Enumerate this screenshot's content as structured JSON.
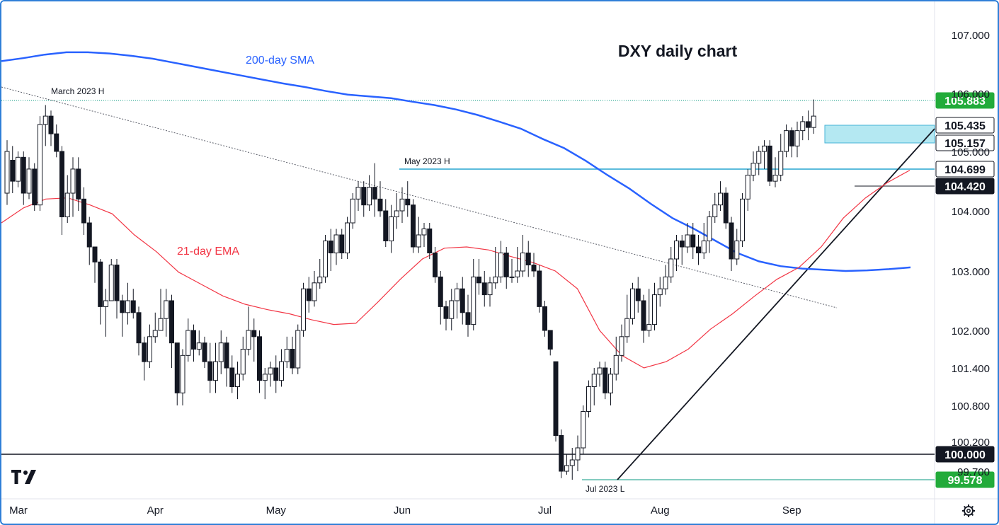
{
  "chart_data": {
    "type": "candlestick",
    "title": "DXY daily chart",
    "y_ticks": [
      99.7,
      100.2,
      100.8,
      101.4,
      102.0,
      103.0,
      104.0,
      105.0,
      106.0,
      107.0
    ],
    "y_tick_labels": [
      "99.700",
      "100.200",
      "100.800",
      "101.400",
      "102.000",
      "103.000",
      "104.000",
      "105.000",
      "106.000",
      "107.000"
    ],
    "x_tick_labels": [
      "Mar",
      "Apr",
      "May",
      "Jun",
      "Jul",
      "Aug",
      "Sep"
    ],
    "series": [
      {
        "name": "200-day SMA",
        "color": "#2962ff",
        "values": [
          106.55,
          106.6,
          106.66,
          106.7,
          106.7,
          106.68,
          106.64,
          106.59,
          106.52,
          106.45,
          106.38,
          106.31,
          106.24,
          106.17,
          106.11,
          106.04,
          105.98,
          105.95,
          105.92,
          105.86,
          105.8,
          105.72,
          105.62,
          105.5,
          105.38,
          105.22,
          105.06,
          104.84,
          104.6,
          104.38,
          104.12,
          103.88,
          103.7,
          103.5,
          103.3,
          103.16,
          103.08,
          103.04,
          103.02,
          103.0,
          103.01,
          103.03,
          103.06
        ]
      },
      {
        "name": "21-day EMA",
        "color": "#f23645",
        "values": [
          103.8,
          104.05,
          104.2,
          104.22,
          104.1,
          103.95,
          103.6,
          103.32,
          102.98,
          102.78,
          102.58,
          102.44,
          102.35,
          102.28,
          102.18,
          102.1,
          102.12,
          102.48,
          102.86,
          103.2,
          103.38,
          103.4,
          103.35,
          103.24,
          103.14,
          103.0,
          102.7,
          102.0,
          101.6,
          101.4,
          101.5,
          101.7,
          102.02,
          102.28,
          102.58,
          102.86,
          103.06,
          103.4,
          103.88,
          104.22,
          104.48,
          104.68
        ]
      }
    ],
    "candles": [
      [
        104.3,
        105.0,
        105.2,
        104.1
      ],
      [
        104.85,
        104.5,
        105.1,
        104.3
      ],
      [
        104.5,
        104.9,
        105.0,
        104.4
      ],
      [
        104.9,
        104.3,
        105.0,
        104.1
      ],
      [
        104.3,
        104.7,
        104.9,
        104.2
      ],
      [
        104.7,
        104.1,
        104.8,
        104.0
      ],
      [
        104.1,
        105.45,
        105.6,
        104.0
      ],
      [
        105.45,
        105.6,
        105.8,
        105.1
      ],
      [
        105.6,
        105.3,
        105.7,
        105.1
      ],
      [
        105.3,
        105.0,
        105.45,
        104.9
      ],
      [
        105.0,
        103.9,
        105.1,
        103.6
      ],
      [
        103.9,
        104.3,
        104.6,
        103.8
      ],
      [
        104.3,
        104.7,
        104.9,
        103.9
      ],
      [
        104.7,
        104.2,
        104.9,
        104.0
      ],
      [
        104.2,
        103.8,
        104.4,
        103.6
      ],
      [
        103.8,
        103.4,
        103.9,
        103.1
      ],
      [
        103.4,
        103.15,
        103.4,
        102.8
      ],
      [
        103.15,
        102.4,
        103.2,
        102.1
      ],
      [
        102.4,
        102.5,
        102.7,
        101.9
      ],
      [
        102.5,
        103.1,
        103.2,
        102.5
      ],
      [
        103.1,
        102.5,
        103.2,
        102.2
      ],
      [
        102.5,
        102.3,
        102.6,
        101.9
      ],
      [
        102.3,
        102.5,
        102.8,
        102.1
      ],
      [
        102.5,
        102.3,
        102.7,
        102.2
      ],
      [
        102.3,
        101.8,
        102.4,
        101.6
      ],
      [
        101.8,
        101.5,
        101.9,
        101.2
      ],
      [
        101.5,
        101.9,
        102.1,
        101.4
      ],
      [
        101.9,
        102.0,
        102.3,
        101.8
      ],
      [
        102.0,
        102.2,
        102.7,
        102.0
      ],
      [
        102.2,
        102.5,
        102.7,
        101.9
      ],
      [
        102.5,
        101.8,
        102.6,
        101.4
      ],
      [
        101.8,
        101.0,
        101.8,
        100.8
      ],
      [
        101.0,
        101.6,
        101.7,
        100.8
      ],
      [
        101.6,
        102.0,
        102.2,
        101.5
      ],
      [
        102.0,
        101.7,
        102.1,
        101.5
      ],
      [
        101.7,
        101.8,
        102.0,
        101.6
      ],
      [
        101.8,
        101.5,
        101.9,
        101.4
      ],
      [
        101.5,
        101.2,
        101.8,
        101.0
      ],
      [
        101.2,
        101.5,
        101.8,
        101.0
      ],
      [
        101.5,
        101.8,
        102.0,
        101.3
      ],
      [
        101.8,
        101.4,
        101.9,
        101.1
      ],
      [
        101.4,
        101.1,
        101.6,
        101.0
      ],
      [
        101.1,
        101.3,
        101.5,
        100.9
      ],
      [
        101.3,
        101.7,
        101.9,
        101.2
      ],
      [
        101.7,
        102.0,
        102.4,
        101.6
      ],
      [
        102.0,
        101.9,
        102.2,
        101.5
      ],
      [
        101.9,
        101.2,
        102.0,
        101.0
      ],
      [
        101.2,
        101.3,
        101.4,
        100.9
      ],
      [
        101.3,
        101.4,
        101.5,
        101.1
      ],
      [
        101.4,
        101.2,
        101.6,
        101.0
      ],
      [
        101.2,
        101.5,
        101.7,
        101.1
      ],
      [
        101.5,
        101.7,
        101.9,
        101.4
      ],
      [
        101.7,
        101.4,
        101.9,
        101.3
      ],
      [
        101.4,
        102.0,
        102.1,
        101.3
      ],
      [
        102.0,
        102.7,
        102.8,
        101.9
      ],
      [
        102.7,
        102.5,
        102.9,
        102.3
      ],
      [
        102.5,
        102.8,
        103.0,
        102.4
      ],
      [
        102.8,
        102.9,
        103.2,
        102.7
      ],
      [
        102.9,
        103.5,
        103.6,
        102.8
      ],
      [
        103.5,
        103.3,
        103.7,
        103.0
      ],
      [
        103.3,
        103.6,
        103.7,
        103.1
      ],
      [
        103.6,
        103.3,
        103.7,
        103.2
      ],
      [
        103.3,
        103.8,
        103.9,
        103.2
      ],
      [
        103.8,
        104.2,
        104.3,
        103.7
      ],
      [
        104.2,
        104.4,
        104.5,
        104.0
      ],
      [
        104.4,
        104.1,
        104.5,
        103.9
      ],
      [
        104.1,
        104.4,
        104.6,
        104.0
      ],
      [
        104.4,
        104.2,
        104.8,
        103.9
      ],
      [
        104.2,
        104.0,
        104.5,
        103.9
      ],
      [
        104.0,
        103.5,
        104.2,
        103.4
      ],
      [
        103.5,
        103.9,
        104.1,
        103.3
      ],
      [
        103.9,
        104.0,
        104.3,
        103.7
      ],
      [
        104.0,
        104.2,
        104.4,
        103.8
      ],
      [
        104.2,
        104.1,
        104.5,
        103.9
      ],
      [
        104.1,
        103.4,
        104.2,
        103.3
      ],
      [
        103.4,
        103.6,
        103.9,
        103.3
      ],
      [
        103.6,
        103.7,
        103.8,
        103.4
      ],
      [
        103.7,
        103.3,
        103.8,
        103.2
      ],
      [
        103.3,
        102.9,
        103.4,
        102.8
      ],
      [
        102.9,
        102.4,
        103.0,
        102.1
      ],
      [
        102.4,
        102.2,
        102.5,
        102.0
      ],
      [
        102.2,
        102.5,
        102.7,
        102.0
      ],
      [
        102.5,
        102.7,
        102.8,
        102.2
      ],
      [
        102.7,
        102.3,
        102.9,
        102.1
      ],
      [
        102.3,
        102.1,
        102.6,
        101.9
      ],
      [
        102.1,
        102.9,
        103.2,
        102.0
      ],
      [
        102.9,
        102.8,
        103.2,
        102.6
      ],
      [
        102.8,
        102.6,
        103.0,
        102.4
      ],
      [
        102.6,
        102.8,
        102.9,
        102.4
      ],
      [
        102.8,
        102.9,
        103.4,
        102.7
      ],
      [
        102.9,
        103.3,
        103.5,
        102.8
      ],
      [
        103.3,
        102.9,
        103.4,
        102.7
      ],
      [
        102.9,
        102.9,
        103.2,
        102.8
      ],
      [
        102.9,
        103.0,
        103.4,
        102.8
      ],
      [
        103.0,
        103.3,
        103.6,
        102.9
      ],
      [
        103.3,
        103.1,
        103.5,
        102.9
      ],
      [
        103.1,
        103.0,
        103.3,
        102.9
      ],
      [
        103.0,
        102.4,
        103.1,
        102.3
      ],
      [
        102.4,
        102.0,
        102.5,
        101.9
      ],
      [
        102.0,
        101.7,
        102.0,
        101.6
      ],
      [
        101.5,
        100.3,
        101.5,
        100.2
      ],
      [
        100.3,
        99.7,
        100.4,
        99.6
      ],
      [
        99.7,
        99.8,
        100.0,
        99.65
      ],
      [
        99.8,
        99.9,
        100.1,
        99.578
      ],
      [
        99.9,
        100.1,
        100.3,
        99.7
      ],
      [
        100.1,
        100.7,
        100.8,
        100.0
      ],
      [
        100.7,
        101.1,
        101.2,
        100.6
      ],
      [
        101.1,
        101.3,
        101.4,
        100.8
      ],
      [
        101.3,
        101.4,
        101.5,
        101.1
      ],
      [
        101.4,
        101.0,
        101.5,
        100.9
      ],
      [
        101.0,
        101.3,
        101.4,
        100.8
      ],
      [
        101.3,
        101.6,
        101.9,
        101.2
      ],
      [
        101.6,
        101.9,
        102.1,
        101.5
      ],
      [
        101.9,
        102.2,
        102.6,
        101.8
      ],
      [
        102.2,
        102.7,
        102.8,
        102.1
      ],
      [
        102.7,
        102.5,
        102.9,
        102.3
      ],
      [
        102.5,
        102.0,
        102.6,
        101.8
      ],
      [
        102.0,
        102.1,
        102.7,
        101.9
      ],
      [
        102.1,
        102.6,
        102.8,
        102.0
      ],
      [
        102.6,
        102.7,
        102.9,
        102.4
      ],
      [
        102.7,
        102.9,
        103.1,
        102.6
      ],
      [
        102.9,
        103.2,
        103.4,
        102.8
      ],
      [
        103.2,
        103.5,
        103.6,
        103.0
      ],
      [
        103.5,
        103.4,
        103.6,
        103.1
      ],
      [
        103.4,
        103.6,
        103.8,
        103.3
      ],
      [
        103.6,
        103.4,
        103.8,
        103.2
      ],
      [
        103.4,
        103.3,
        103.6,
        103.1
      ],
      [
        103.3,
        103.5,
        103.8,
        103.2
      ],
      [
        103.5,
        103.9,
        104.0,
        103.3
      ],
      [
        103.9,
        104.1,
        104.3,
        103.8
      ],
      [
        104.1,
        104.3,
        104.5,
        104.0
      ],
      [
        104.3,
        103.8,
        104.4,
        103.7
      ],
      [
        103.8,
        103.2,
        103.9,
        103.0
      ],
      [
        103.2,
        103.5,
        103.7,
        103.1
      ],
      [
        103.5,
        104.2,
        104.3,
        103.4
      ],
      [
        104.2,
        104.6,
        104.7,
        104.0
      ],
      [
        104.6,
        104.8,
        105.0,
        104.5
      ],
      [
        104.8,
        105.0,
        105.1,
        104.6
      ],
      [
        105.0,
        105.1,
        105.2,
        104.7
      ],
      [
        105.1,
        104.5,
        105.2,
        104.42
      ],
      [
        104.5,
        104.6,
        104.9,
        104.4
      ],
      [
        104.6,
        105.0,
        105.3,
        104.5
      ],
      [
        105.0,
        105.35,
        105.45,
        104.9
      ],
      [
        105.35,
        105.1,
        105.4,
        104.9
      ],
      [
        105.1,
        105.35,
        105.5,
        104.9
      ],
      [
        105.35,
        105.5,
        105.6,
        105.2
      ],
      [
        105.5,
        105.4,
        105.7,
        105.2
      ],
      [
        105.4,
        105.6,
        105.9,
        105.3
      ]
    ],
    "levels": [
      {
        "value": 105.883,
        "label": "105.883",
        "color": "#089981"
      },
      {
        "value": 105.435,
        "label": "105.435",
        "color": "#ffffff"
      },
      {
        "value": 105.157,
        "label": "105.157",
        "color": "#ffffff"
      },
      {
        "value": 104.699,
        "label": "104.699",
        "color": "#ffffff"
      },
      {
        "value": 104.42,
        "label": "104.420",
        "color": "#000000"
      },
      {
        "value": 100.0,
        "label": "100.000",
        "color": "#000000"
      },
      {
        "value": 99.578,
        "label": "99.578",
        "color": "#089981"
      }
    ],
    "annotations": [
      "March 2023 H",
      "May 2023 H",
      "Jul 2023 L",
      "200-day SMA",
      "21-day EMA"
    ]
  },
  "ui": {
    "logo": "TV",
    "settings_icon": "gear-icon"
  }
}
